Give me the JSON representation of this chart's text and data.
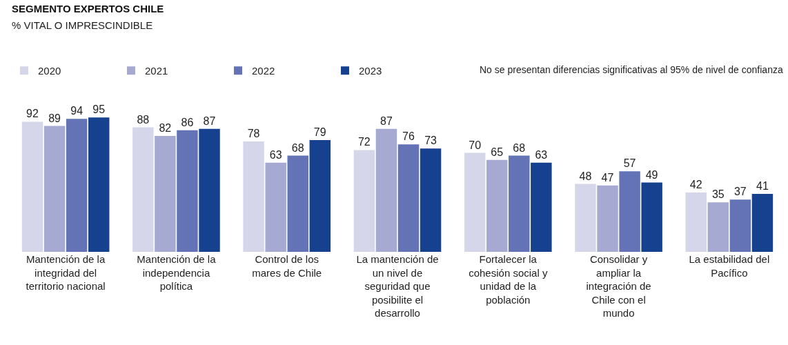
{
  "chart_data": {
    "type": "bar",
    "title": "SEGMENTO EXPERTOS CHILE",
    "subtitle": "% VITAL O IMPRESCINDIBLE",
    "categories": [
      "Mantención de la\nintegridad del\nterritorio nacional",
      "Mantención de la\nindependencia\npolítica",
      "Control de los\nmares de Chile",
      "La mantención de\nun nivel de\nseguridad que\nposibilite el\ndesarrollo",
      "Fortalecer la\ncohesión social y\nunidad de la\npoblación",
      "Consolidar y\nampliar la\nintegración de\nChile con el\nmundo",
      "La estabilidad del\nPacífico"
    ],
    "series": [
      {
        "name": "2020",
        "color": "#d5d6ea",
        "values": [
          92,
          88,
          78,
          72,
          70,
          48,
          42
        ]
      },
      {
        "name": "2021",
        "color": "#a6aad3",
        "values": [
          89,
          82,
          63,
          87,
          65,
          47,
          35
        ]
      },
      {
        "name": "2022",
        "color": "#6373b5",
        "values": [
          94,
          86,
          68,
          76,
          68,
          57,
          37
        ]
      },
      {
        "name": "2023",
        "color": "#15418f",
        "values": [
          95,
          87,
          79,
          73,
          63,
          49,
          41
        ]
      }
    ],
    "annotations": [
      "No se presentan diferencias significativas al 95% de nivel de confianza"
    ],
    "data_labels": true,
    "legend": "top left"
  }
}
